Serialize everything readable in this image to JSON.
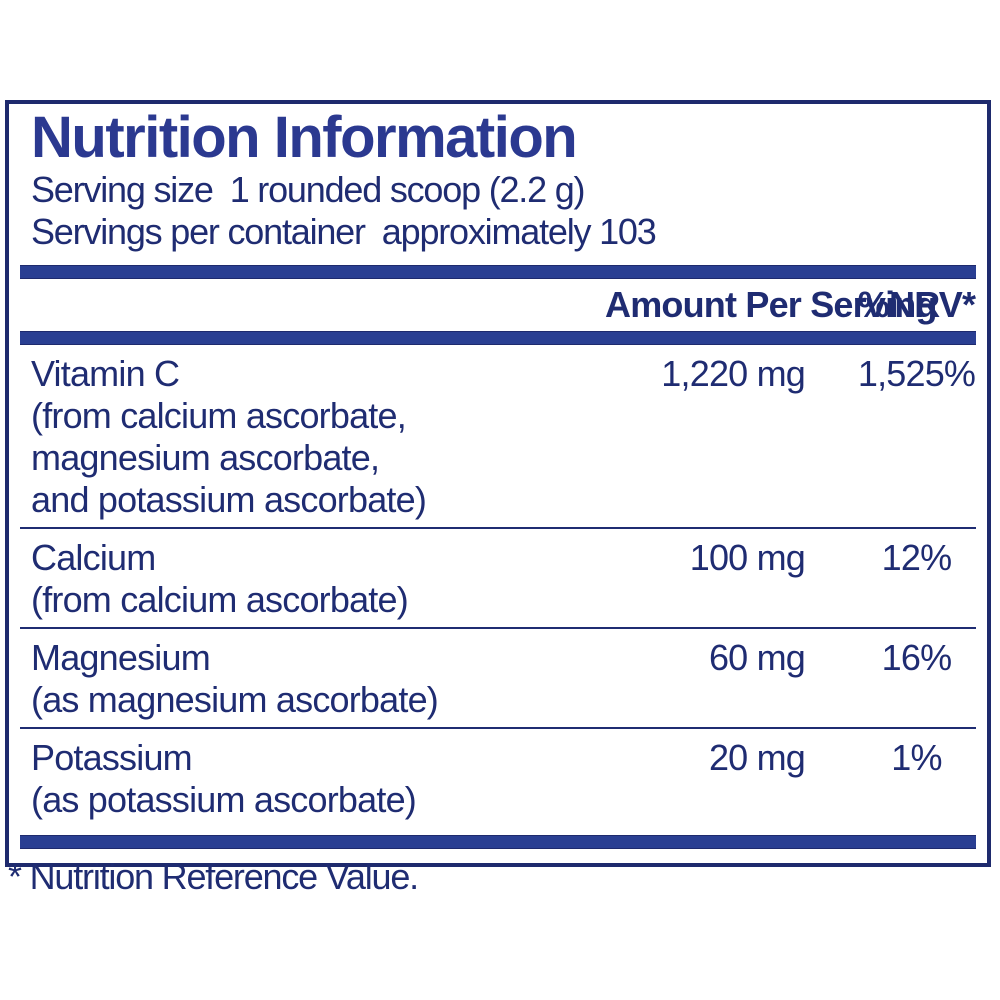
{
  "label": {
    "title": "Nutrition Information",
    "serving_size_label": "Serving size",
    "serving_size_value": "1 rounded scoop (2.2 g)",
    "servings_per_container_label": "Servings per container",
    "servings_per_container_value": "approximately 103",
    "columns": {
      "amount": "Amount Per Serving",
      "nrv": "%NRV*"
    },
    "rows": [
      {
        "name": "Vitamin C",
        "details": [
          "(from calcium ascorbate,",
          "magnesium ascorbate,",
          "and potassium ascorbate)"
        ],
        "amount": "1,220 mg",
        "nrv": "1,525%"
      },
      {
        "name": "Calcium",
        "details": [
          "(from calcium ascorbate)"
        ],
        "amount": "100 mg",
        "nrv": "12%"
      },
      {
        "name": "Magnesium",
        "details": [
          "(as magnesium ascorbate)"
        ],
        "amount": "60 mg",
        "nrv": "16%"
      },
      {
        "name": "Potassium",
        "details": [
          "(as potassium ascorbate)"
        ],
        "amount": "20 mg",
        "nrv": "1%"
      }
    ],
    "footnote": "* Nutrition Reference Value."
  },
  "colors": {
    "title_blue": "#2b3990",
    "text_navy": "#1f2c72",
    "bar_blue": "#2a3f92",
    "border_navy": "#1e2a6d"
  }
}
